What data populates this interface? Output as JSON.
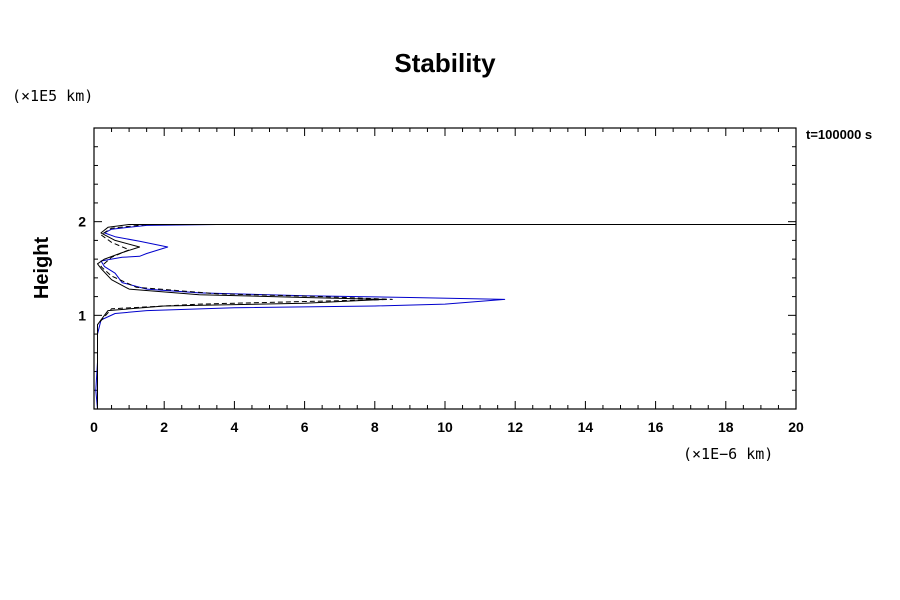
{
  "chart_data": {
    "type": "line",
    "title": "Stability",
    "ylabel": "Height",
    "xlabel": "",
    "y_unit": "(×1E5 km)",
    "x_unit": "(×1E−6 km)",
    "time_label": "t=100000 s",
    "xlim": [
      0,
      20
    ],
    "ylim": [
      0,
      3
    ],
    "x_ticks": [
      "0",
      "2",
      "4",
      "6",
      "8",
      "10",
      "12",
      "14",
      "16",
      "18",
      "20"
    ],
    "y_ticks": [
      "1",
      "2"
    ],
    "grid": false,
    "series": [
      {
        "color": "#0000cc",
        "dash": "",
        "points": [
          [
            0.1,
            0.0
          ],
          [
            0.05,
            0.2
          ],
          [
            0.1,
            0.5
          ],
          [
            0.1,
            0.8
          ],
          [
            0.2,
            0.95
          ],
          [
            0.6,
            1.02
          ],
          [
            1.5,
            1.05
          ],
          [
            4.0,
            1.08
          ],
          [
            8.0,
            1.1
          ],
          [
            10.0,
            1.12
          ],
          [
            11.7,
            1.17
          ],
          [
            9.0,
            1.19
          ],
          [
            6.0,
            1.21
          ],
          [
            3.0,
            1.24
          ],
          [
            1.5,
            1.28
          ],
          [
            0.8,
            1.35
          ],
          [
            0.6,
            1.45
          ],
          [
            0.3,
            1.52
          ],
          [
            0.2,
            1.58
          ],
          [
            0.5,
            1.6
          ],
          [
            0.8,
            1.62
          ],
          [
            1.3,
            1.63
          ],
          [
            1.5,
            1.66
          ],
          [
            2.1,
            1.73
          ],
          [
            1.3,
            1.79
          ],
          [
            0.6,
            1.84
          ],
          [
            0.3,
            1.88
          ],
          [
            0.5,
            1.92
          ],
          [
            1.5,
            1.96
          ],
          [
            3.5,
            1.97
          ],
          [
            8.0,
            1.97
          ],
          [
            14.0,
            1.97
          ],
          [
            20.0,
            1.97
          ]
        ]
      },
      {
        "color": "#000000",
        "dash": "",
        "points": [
          [
            0.1,
            0.0
          ],
          [
            0.1,
            0.9
          ],
          [
            0.4,
            1.05
          ],
          [
            2.0,
            1.1
          ],
          [
            6.0,
            1.13
          ],
          [
            8.3,
            1.17
          ],
          [
            6.0,
            1.19
          ],
          [
            3.0,
            1.22
          ],
          [
            1.0,
            1.28
          ],
          [
            0.5,
            1.38
          ],
          [
            0.2,
            1.5
          ],
          [
            0.1,
            1.55
          ],
          [
            0.3,
            1.6
          ],
          [
            0.8,
            1.67
          ],
          [
            1.3,
            1.73
          ],
          [
            0.6,
            1.8
          ],
          [
            0.2,
            1.88
          ],
          [
            0.4,
            1.94
          ],
          [
            1.0,
            1.97
          ],
          [
            5.0,
            1.97
          ],
          [
            12.0,
            1.97
          ],
          [
            20.0,
            1.97
          ]
        ]
      },
      {
        "color": "#000000",
        "dash": "5,3",
        "points": [
          [
            0.1,
            0.0
          ],
          [
            0.1,
            0.9
          ],
          [
            0.5,
            1.07
          ],
          [
            3.0,
            1.12
          ],
          [
            8.5,
            1.17
          ],
          [
            6.5,
            1.2
          ],
          [
            3.5,
            1.23
          ],
          [
            1.2,
            1.3
          ],
          [
            0.5,
            1.42
          ],
          [
            0.2,
            1.52
          ],
          [
            0.5,
            1.62
          ],
          [
            1.0,
            1.7
          ],
          [
            0.5,
            1.78
          ],
          [
            0.2,
            1.86
          ],
          [
            0.5,
            1.93
          ],
          [
            1.5,
            1.97
          ],
          [
            20.0,
            1.97
          ]
        ]
      }
    ]
  }
}
